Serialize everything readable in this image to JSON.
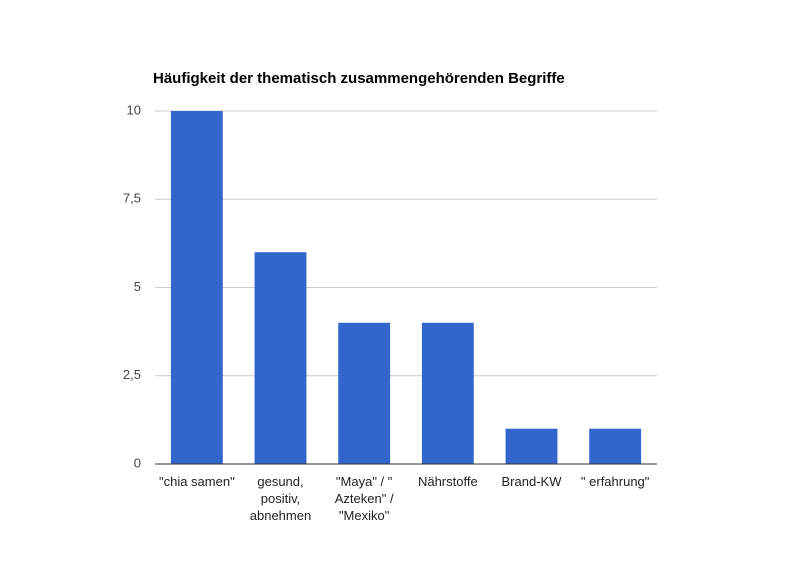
{
  "chart_data": {
    "type": "bar",
    "title": "Häufigkeit der thematisch zusammengehörenden Begriffe",
    "categories": [
      "\"chia samen\"",
      "gesund, positiv, abnehmen",
      "\"Maya\" / \" Azteken\" / \"Mexiko\"",
      "Nährstoffe",
      "Brand-KW",
      "\" erfahrung\""
    ],
    "values": [
      10,
      6,
      4,
      4,
      1,
      1
    ],
    "color": "#3366cc",
    "ylim": [
      0,
      10
    ],
    "yticks": [
      0,
      {
        "value": 2.5,
        "label": "2,5"
      },
      5,
      {
        "value": 7.5,
        "label": "7,5"
      },
      10
    ],
    "grid": true
  }
}
